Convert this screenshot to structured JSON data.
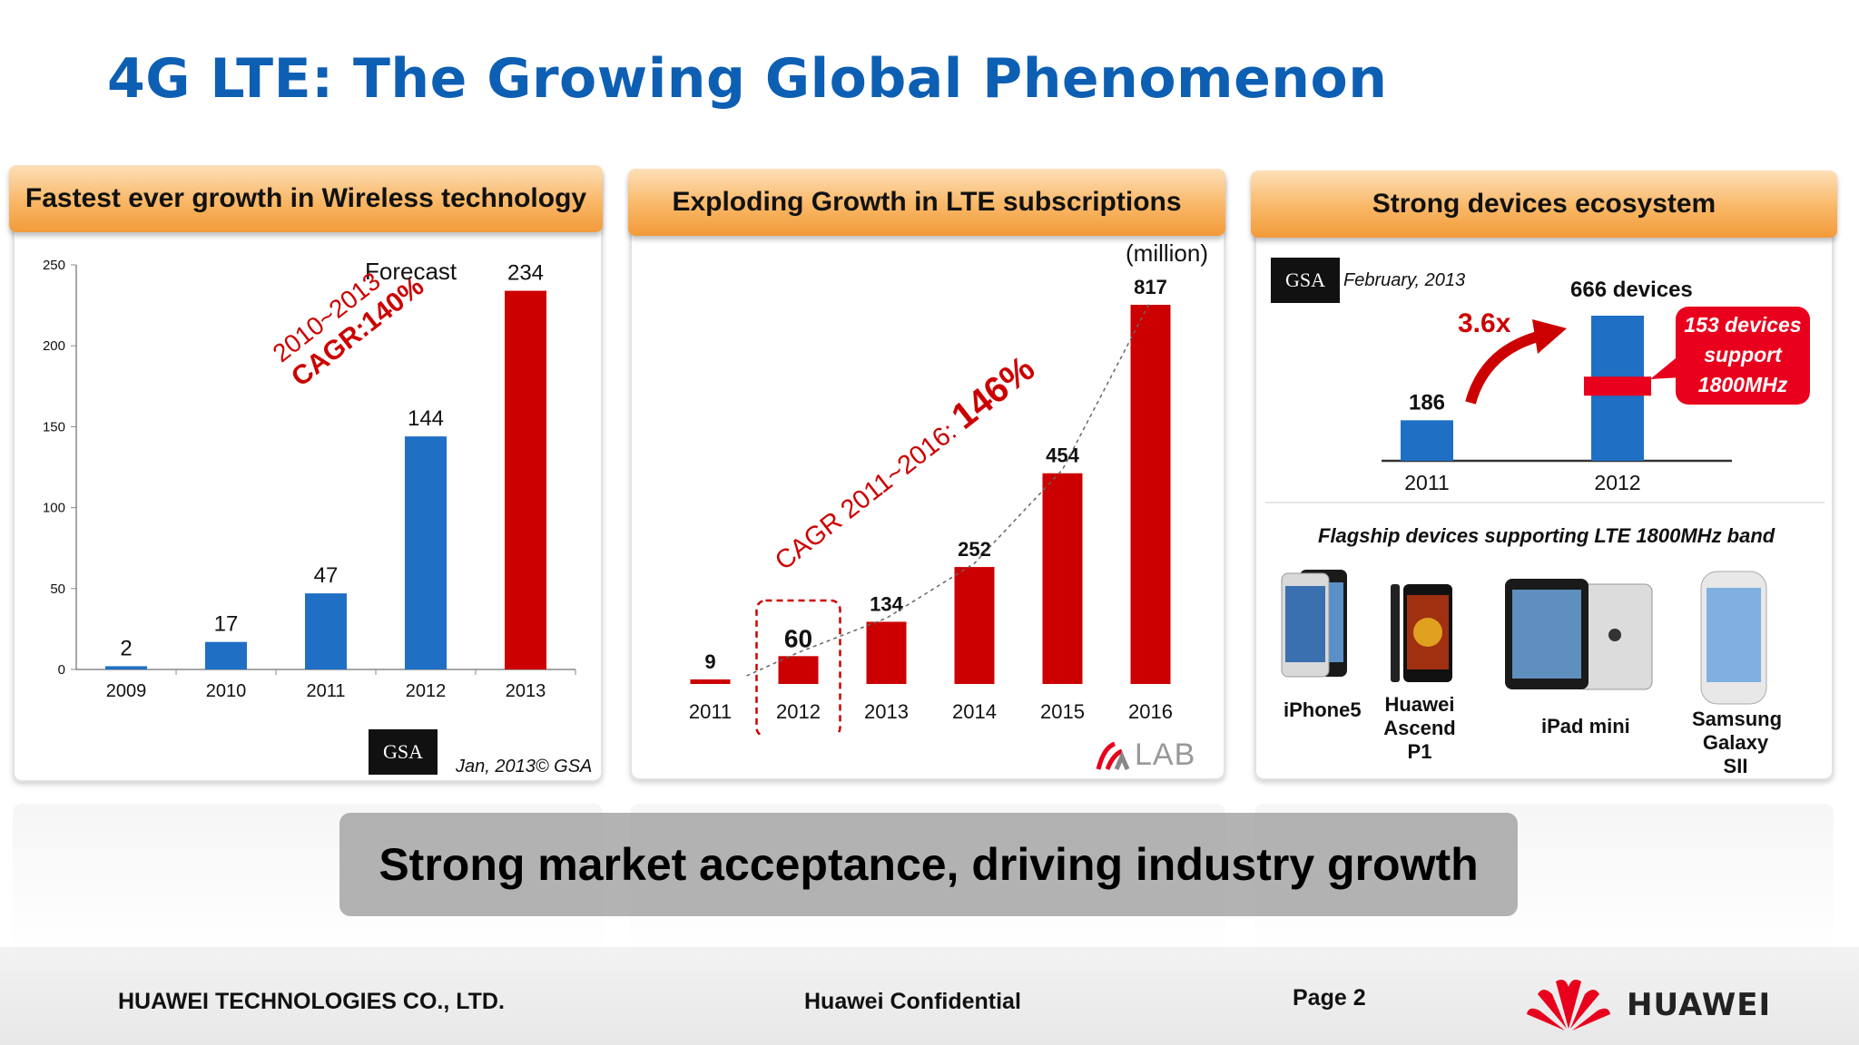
{
  "slide": {
    "title": "4G LTE: The Growing Global Phenomenon",
    "banner": "Strong market acceptance, driving industry growth",
    "footer": {
      "company": "HUAWEI TECHNOLOGIES CO., LTD.",
      "confidential": "Huawei Confidential",
      "page": "Page 2",
      "brand": "HUAWEI"
    }
  },
  "panel1": {
    "header": "Fastest ever growth in Wireless technology",
    "forecast_label": "Forecast",
    "cagr_line1": "2010~2013",
    "cagr_line2": "CAGR:140%",
    "source_logo": "GSA",
    "source_note": "Jan, 2013© GSA"
  },
  "panel2": {
    "header": "Exploding Growth in LTE subscriptions",
    "unit": "(million)",
    "cagr_prefix": "CAGR 2011~2016: ",
    "cagr_value": "146%",
    "logo": "LAB"
  },
  "panel3": {
    "header": "Strong devices ecosystem",
    "source_logo": "GSA",
    "source_date": "February, 2013",
    "growth": "3.6x",
    "devices_label": "666 devices",
    "callout_line1": "153 devices",
    "callout_line2": "support",
    "callout_line3": "1800MHz",
    "flagship_title": "Flagship devices supporting LTE 1800MHz band",
    "devices": [
      {
        "line1": "iPhone5",
        "line2": ""
      },
      {
        "line1": "Huawei",
        "line2": "Ascend P1"
      },
      {
        "line1": "iPad mini",
        "line2": ""
      },
      {
        "line1": "Samsung",
        "line2": "Galaxy SII"
      }
    ]
  },
  "chart_data": [
    {
      "type": "bar",
      "categories": [
        "2009",
        "2010",
        "2011",
        "2012",
        "2013"
      ],
      "values": [
        2,
        17,
        47,
        144,
        234
      ],
      "data_labels": [
        "2",
        "17",
        "47",
        "144",
        "234"
      ],
      "colors": [
        "#1f6fc5",
        "#1f6fc5",
        "#1f6fc5",
        "#1f6fc5",
        "#cc0000"
      ],
      "ylim": [
        0,
        250
      ],
      "yticks": [
        0,
        50,
        100,
        150,
        200,
        250
      ],
      "grid": false
    },
    {
      "type": "bar",
      "categories": [
        "2011",
        "2012",
        "2013",
        "2014",
        "2015",
        "2016"
      ],
      "values": [
        9,
        60,
        134,
        252,
        454,
        817
      ],
      "data_labels": [
        "9",
        "60",
        "134",
        "252",
        "454",
        "817"
      ],
      "color": "#cc0000",
      "highlight_category": "2012",
      "trend_line": "dashed",
      "grid": false
    },
    {
      "type": "bar",
      "categories": [
        "2011",
        "2012"
      ],
      "values": [
        186,
        666
      ],
      "data_labels": [
        "186",
        ""
      ],
      "stacked_highlight": {
        "category": "2012",
        "value": 153,
        "color": "#e8001c"
      },
      "color": "#1f6fc5",
      "grid": false
    }
  ]
}
